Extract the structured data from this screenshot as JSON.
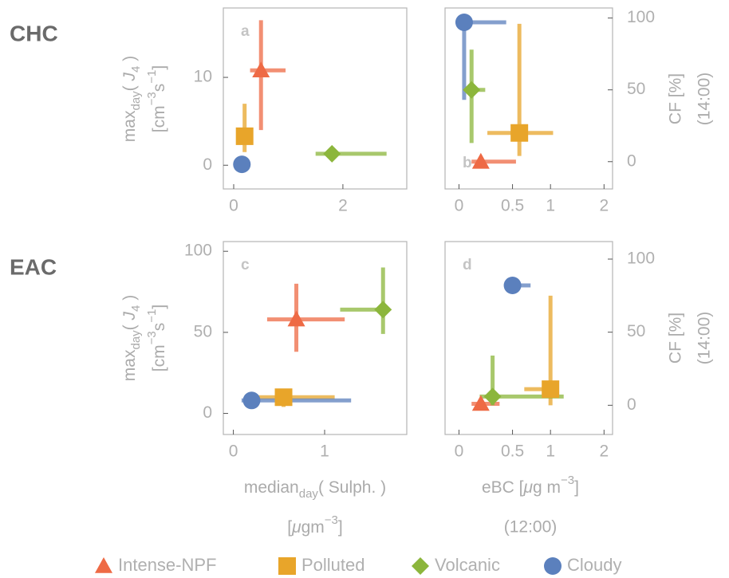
{
  "legend": [
    {
      "name": "Intense-NPF",
      "color": "#ee6a45",
      "marker": "triangle"
    },
    {
      "name": "Polluted",
      "color": "#e8a52a",
      "marker": "square"
    },
    {
      "name": "Volcanic",
      "color": "#8cb63c",
      "marker": "diamond"
    },
    {
      "name": "Cloudy",
      "color": "#5b80bd",
      "marker": "circle"
    }
  ],
  "chart_data": [
    {
      "type": "scatter",
      "label": "a",
      "label_position": "top",
      "row_label": "CHC",
      "yaxis_side": "left",
      "xscale": "linear",
      "ylabel": [
        "max",
        "day",
        "( ",
        "J",
        "4",
        " )"
      ],
      "ylabel2": [
        "[cm",
        "−3",
        "s",
        "−1",
        "]"
      ],
      "xlim": [
        -0.19,
        3.17
      ],
      "xticks": [
        0,
        2
      ],
      "ylim": [
        -2.7,
        17.9
      ],
      "yticks": [
        0,
        10
      ],
      "x": [
        0.5,
        0.2,
        1.8,
        0.15
      ],
      "xlo": [
        0.3,
        0.1,
        1.5,
        0.1
      ],
      "xhi": [
        0.95,
        0.35,
        2.8,
        0.25
      ],
      "y": [
        10.8,
        3.3,
        1.3,
        0.1
      ],
      "ylo": [
        4,
        1.5,
        1.1,
        null
      ],
      "yhi": [
        16.5,
        7,
        1.5,
        null
      ]
    },
    {
      "type": "scatter",
      "label": "b",
      "label_position": "bottom",
      "yaxis_side": "right",
      "xscale": "log1p",
      "ylabel": [
        "CF [%]"
      ],
      "ylabel2": [
        "(14:00)"
      ],
      "xlim": [
        -0.1,
        2.2
      ],
      "xticks": [
        0,
        0.5,
        1,
        2
      ],
      "ylim": [
        -19,
        107
      ],
      "yticks": [
        0,
        50,
        100
      ],
      "x": [
        0.18,
        0.58,
        0.1,
        0.04
      ],
      "xlo": [
        0.1,
        0.24,
        0.05,
        0
      ],
      "xhi": [
        0.54,
        1.04,
        0.22,
        0.43
      ],
      "y": [
        0,
        20,
        50,
        97
      ],
      "ylo": [
        null,
        4,
        13,
        43
      ],
      "yhi": [
        null,
        96,
        78,
        97
      ]
    },
    {
      "type": "scatter",
      "label": "c",
      "label_position": "top",
      "row_label": "EAC",
      "yaxis_side": "left",
      "xscale": "linear",
      "ylabel": [
        "max",
        "day",
        "( ",
        "J",
        "4",
        " )"
      ],
      "ylabel2": [
        "[cm",
        "−3",
        "s",
        "−1",
        "]"
      ],
      "xlabel": [
        "median",
        "day",
        "( Sulph. )"
      ],
      "xlabel2": [
        "[",
        "μ",
        "gm",
        "−3",
        "]"
      ],
      "xlim": [
        -0.11,
        1.9
      ],
      "xticks": [
        0,
        1
      ],
      "ylim": [
        -13,
        106
      ],
      "yticks": [
        0,
        50,
        100
      ],
      "x": [
        0.69,
        0.55,
        1.64,
        0.2
      ],
      "xlo": [
        0.37,
        0.22,
        1.17,
        0.09
      ],
      "xhi": [
        1.22,
        1.11,
        1.7,
        1.29
      ],
      "y": [
        58,
        10,
        64,
        8
      ],
      "ylo": [
        38,
        4,
        49,
        4
      ],
      "yhi": [
        80,
        14,
        90,
        12
      ]
    },
    {
      "type": "scatter",
      "label": "d",
      "label_position": "top",
      "yaxis_side": "right",
      "xscale": "log1p",
      "ylabel": [
        "CF [%]"
      ],
      "ylabel2": [
        "(14:00)"
      ],
      "xlabel": [
        "eBC [",
        "μ",
        "g m",
        "−3",
        "]"
      ],
      "xlabel2": [
        "(12:00)"
      ],
      "xlim": [
        -0.1,
        2.2
      ],
      "xticks": [
        0,
        0.5,
        1,
        2
      ],
      "ylim": [
        -20,
        112
      ],
      "yticks": [
        0,
        50,
        100
      ],
      "x": [
        0.18,
        1.0,
        0.29,
        0.5
      ],
      "xlo": [
        0.1,
        0.64,
        0.17,
        0.43
      ],
      "xhi": [
        0.36,
        1.04,
        1.21,
        0.72
      ],
      "y": [
        1,
        11,
        6,
        82
      ],
      "ylo": [
        null,
        0,
        0,
        77
      ],
      "yhi": [
        null,
        75,
        34,
        86
      ]
    }
  ]
}
